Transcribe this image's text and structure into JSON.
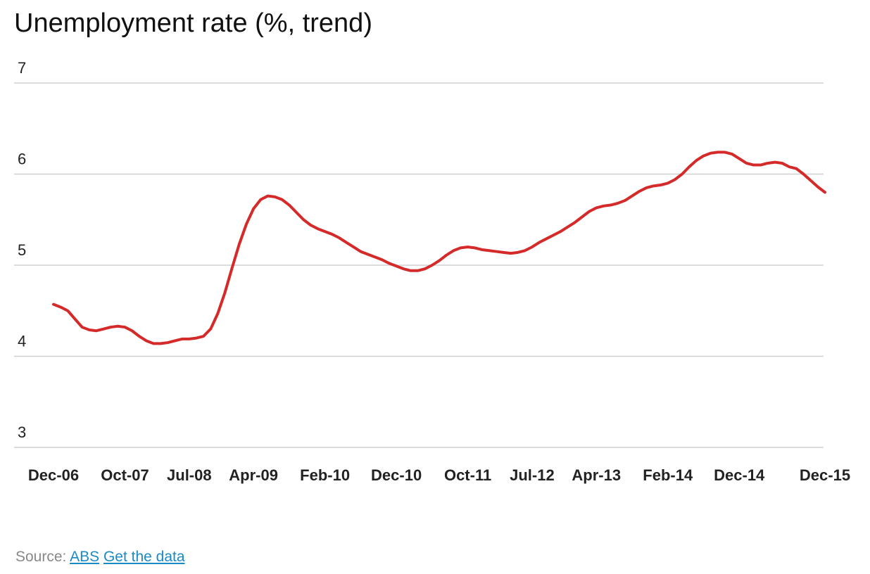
{
  "chart_data": {
    "type": "line",
    "title": "Unemployment rate (%, trend)",
    "categories": [
      "Dec-06",
      null,
      null,
      null,
      null,
      null,
      null,
      null,
      null,
      null,
      "Oct-07",
      null,
      null,
      null,
      null,
      null,
      null,
      null,
      null,
      "Jul-08",
      null,
      null,
      null,
      null,
      null,
      null,
      null,
      null,
      "Apr-09",
      null,
      null,
      null,
      null,
      null,
      null,
      null,
      null,
      null,
      "Feb-10",
      null,
      null,
      null,
      null,
      null,
      null,
      null,
      null,
      null,
      "Dec-10",
      null,
      null,
      null,
      null,
      null,
      null,
      null,
      null,
      null,
      "Oct-11",
      null,
      null,
      null,
      null,
      null,
      null,
      null,
      null,
      "Jul-12",
      null,
      null,
      null,
      null,
      null,
      null,
      null,
      null,
      "Apr-13",
      null,
      null,
      null,
      null,
      null,
      null,
      null,
      null,
      null,
      "Feb-14",
      null,
      null,
      null,
      null,
      null,
      null,
      null,
      null,
      null,
      "Dec-14",
      null,
      null,
      null,
      null,
      null,
      null,
      null,
      null,
      null,
      null,
      null,
      "Dec-15"
    ],
    "series": [
      {
        "name": "Unemployment rate",
        "color": "#d42a2a",
        "values": [
          4.57,
          4.54,
          4.5,
          4.41,
          4.32,
          4.29,
          4.28,
          4.3,
          4.32,
          4.33,
          4.32,
          4.28,
          4.22,
          4.17,
          4.14,
          4.14,
          4.15,
          4.17,
          4.19,
          4.19,
          4.2,
          4.22,
          4.3,
          4.47,
          4.7,
          4.97,
          5.23,
          5.45,
          5.62,
          5.72,
          5.76,
          5.75,
          5.72,
          5.66,
          5.58,
          5.5,
          5.44,
          5.4,
          5.37,
          5.34,
          5.3,
          5.25,
          5.2,
          5.15,
          5.12,
          5.09,
          5.06,
          5.02,
          4.99,
          4.96,
          4.94,
          4.94,
          4.96,
          5.0,
          5.05,
          5.11,
          5.16,
          5.19,
          5.2,
          5.19,
          5.17,
          5.16,
          5.15,
          5.14,
          5.13,
          5.14,
          5.16,
          5.2,
          5.25,
          5.29,
          5.33,
          5.37,
          5.42,
          5.47,
          5.53,
          5.59,
          5.63,
          5.65,
          5.66,
          5.68,
          5.71,
          5.76,
          5.81,
          5.85,
          5.87,
          5.88,
          5.9,
          5.94,
          6.0,
          6.08,
          6.15,
          6.2,
          6.23,
          6.24,
          6.24,
          6.22,
          6.17,
          6.12,
          6.1,
          6.1,
          6.12,
          6.13,
          6.12,
          6.08,
          6.06,
          6.0,
          5.93,
          5.86,
          5.8
        ]
      }
    ],
    "ylim": [
      3,
      7
    ],
    "yticks": [
      3,
      4,
      5,
      6,
      7
    ],
    "grid": true
  },
  "footer": {
    "source_label": "Source:",
    "links": [
      "ABS",
      "Get the data"
    ]
  }
}
